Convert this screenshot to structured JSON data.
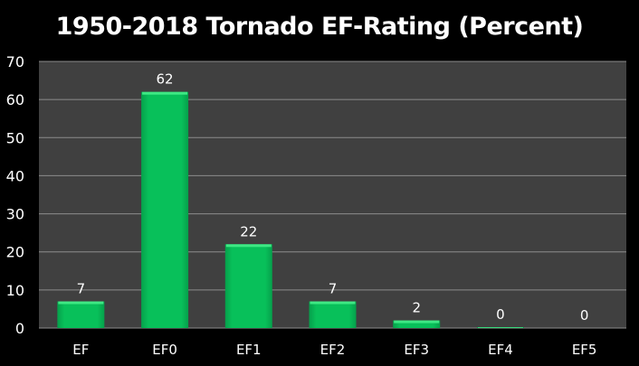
{
  "chart_data": {
    "type": "bar",
    "title": "1950-2018 Tornado EF-Rating (Percent)",
    "xlabel": "",
    "ylabel": "",
    "categories": [
      "EF",
      "EF0",
      "EF1",
      "EF2",
      "EF3",
      "EF4",
      "EF5"
    ],
    "values": [
      7,
      62,
      22,
      7,
      2,
      0.2,
      0
    ],
    "data_labels": [
      "7",
      "62",
      "22",
      "7",
      "2",
      "0",
      "0"
    ],
    "ylim": [
      0,
      70
    ],
    "yticks": [
      0,
      10,
      20,
      30,
      40,
      50,
      60,
      70
    ],
    "grid": true,
    "legend": "none",
    "colors": {
      "bar": "#08c05a",
      "bar_highlight": "#3ee884",
      "plot_bg": "#404040",
      "page_bg": "#000000",
      "grid": "#8c8c8c",
      "text": "#ffffff"
    }
  }
}
